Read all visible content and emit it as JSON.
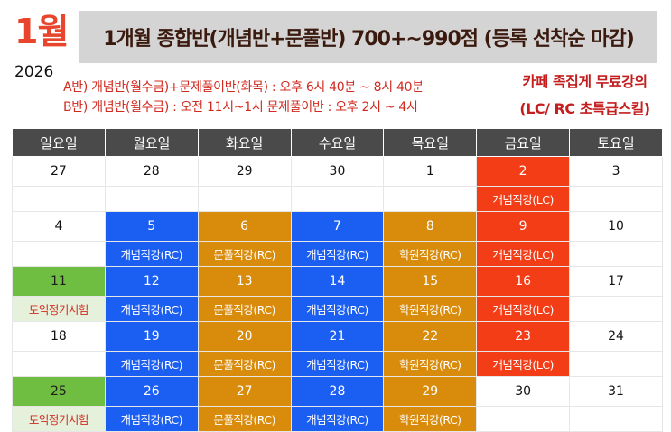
{
  "header": {
    "month": "1월",
    "year": "2026",
    "title": "1개월 종합반(개념반+문풀반) 700+~990점 (등록 선착순 마감)",
    "schedule_a": "A반) 개념반(월수금)+문제풀이반(화목) : 오후 6시 40분 ~ 8시 40분",
    "schedule_b": "B반) 개념반(월수금) : 오전 11시~1시 문제풀이반 : 오후 2시 ~ 4시",
    "promo_line1": "카페 족집게 무료강의",
    "promo_line2": "(LC/ RC 초특급스킬)"
  },
  "colors": {
    "accent_red": "#e8452c",
    "blue": "#1a5ef2",
    "orange": "#d98b0c",
    "red": "#f23d16",
    "green": "#6fbd41"
  },
  "calendar": {
    "weekdays": [
      "일요일",
      "월요일",
      "화요일",
      "수요일",
      "목요일",
      "금요일",
      "토요일"
    ],
    "weeks": [
      {
        "days": [
          {
            "num": "27",
            "event": "",
            "style": ""
          },
          {
            "num": "28",
            "event": "",
            "style": ""
          },
          {
            "num": "29",
            "event": "",
            "style": ""
          },
          {
            "num": "30",
            "event": "",
            "style": ""
          },
          {
            "num": "1",
            "event": "",
            "style": ""
          },
          {
            "num": "2",
            "event": "개념직강(LC)",
            "style": "red"
          },
          {
            "num": "3",
            "event": "",
            "style": ""
          }
        ]
      },
      {
        "days": [
          {
            "num": "4",
            "event": "",
            "style": ""
          },
          {
            "num": "5",
            "event": "개념직강(RC)",
            "style": "blue"
          },
          {
            "num": "6",
            "event": "문풀직강(RC)",
            "style": "orange"
          },
          {
            "num": "7",
            "event": "개념직강(RC)",
            "style": "blue"
          },
          {
            "num": "8",
            "event": "학원직강(RC)",
            "style": "orange"
          },
          {
            "num": "9",
            "event": "개념직강(LC)",
            "style": "red"
          },
          {
            "num": "10",
            "event": "",
            "style": ""
          }
        ]
      },
      {
        "days": [
          {
            "num": "11",
            "event": "토익정기시험",
            "style": "green"
          },
          {
            "num": "12",
            "event": "개념직강(RC)",
            "style": "blue"
          },
          {
            "num": "13",
            "event": "문풀직강(RC)",
            "style": "orange"
          },
          {
            "num": "14",
            "event": "개념직강(RC)",
            "style": "blue"
          },
          {
            "num": "15",
            "event": "학원직강(RC)",
            "style": "orange"
          },
          {
            "num": "16",
            "event": "개념직강(LC)",
            "style": "red"
          },
          {
            "num": "17",
            "event": "",
            "style": ""
          }
        ]
      },
      {
        "days": [
          {
            "num": "18",
            "event": "",
            "style": ""
          },
          {
            "num": "19",
            "event": "개념직강(RC)",
            "style": "blue"
          },
          {
            "num": "20",
            "event": "문풀직강(RC)",
            "style": "orange"
          },
          {
            "num": "21",
            "event": "개념직강(RC)",
            "style": "blue"
          },
          {
            "num": "22",
            "event": "학원직강(RC)",
            "style": "orange"
          },
          {
            "num": "23",
            "event": "개념직강(LC)",
            "style": "red"
          },
          {
            "num": "24",
            "event": "",
            "style": ""
          }
        ]
      },
      {
        "days": [
          {
            "num": "25",
            "event": "토익정기시험",
            "style": "green"
          },
          {
            "num": "26",
            "event": "개념직강(RC)",
            "style": "blue"
          },
          {
            "num": "27",
            "event": "문풀직강(RC)",
            "style": "orange"
          },
          {
            "num": "28",
            "event": "개념직강(RC)",
            "style": "blue"
          },
          {
            "num": "29",
            "event": "학원직강(RC)",
            "style": "orange"
          },
          {
            "num": "30",
            "event": "",
            "style": ""
          },
          {
            "num": "31",
            "event": "",
            "style": ""
          }
        ]
      }
    ]
  }
}
